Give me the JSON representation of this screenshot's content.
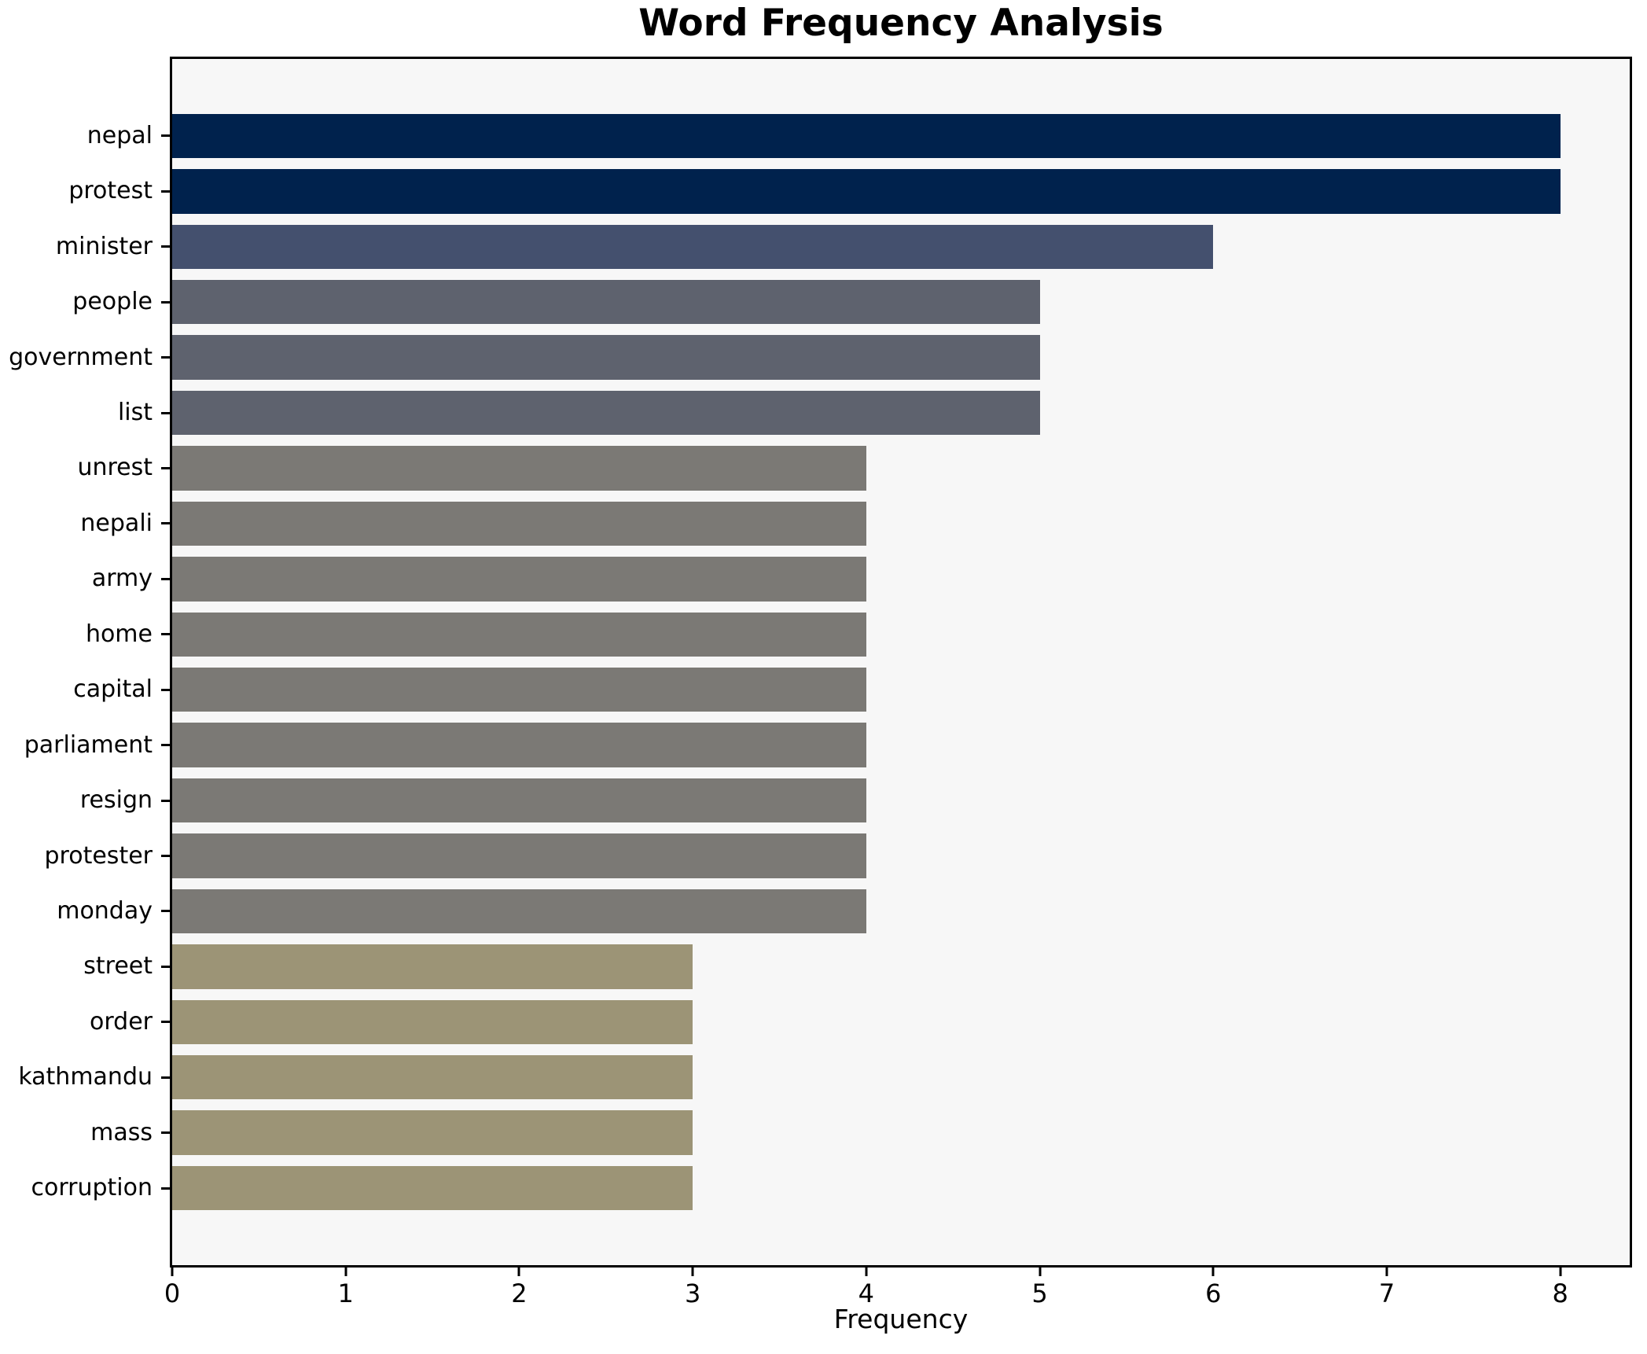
{
  "chart_data": {
    "type": "bar",
    "orientation": "horizontal",
    "title": "Word Frequency Analysis",
    "xlabel": "Frequency",
    "ylabel": "",
    "categories": [
      "nepal",
      "protest",
      "minister",
      "people",
      "government",
      "list",
      "unrest",
      "nepali",
      "army",
      "home",
      "capital",
      "parliament",
      "resign",
      "protester",
      "monday",
      "street",
      "order",
      "kathmandu",
      "mass",
      "corruption"
    ],
    "values": [
      8,
      8,
      6,
      5,
      5,
      5,
      4,
      4,
      4,
      4,
      4,
      4,
      4,
      4,
      4,
      3,
      3,
      3,
      3,
      3
    ],
    "bar_colors": [
      "#00224d",
      "#00224d",
      "#44506e",
      "#5e626e",
      "#5e626e",
      "#5e626e",
      "#7b7975",
      "#7b7975",
      "#7b7975",
      "#7b7975",
      "#7b7975",
      "#7b7975",
      "#7b7975",
      "#7b7975",
      "#7b7975",
      "#9c9476",
      "#9c9476",
      "#9c9476",
      "#9c9476",
      "#9c9476"
    ],
    "xlim": [
      0,
      8.4
    ],
    "xticks": [
      0,
      1,
      2,
      3,
      4,
      5,
      6,
      7,
      8
    ],
    "grid": false,
    "legend_position": "none",
    "plot_background": "#f7f7f7",
    "axis_color": "#000000",
    "text_color": "#000000"
  }
}
